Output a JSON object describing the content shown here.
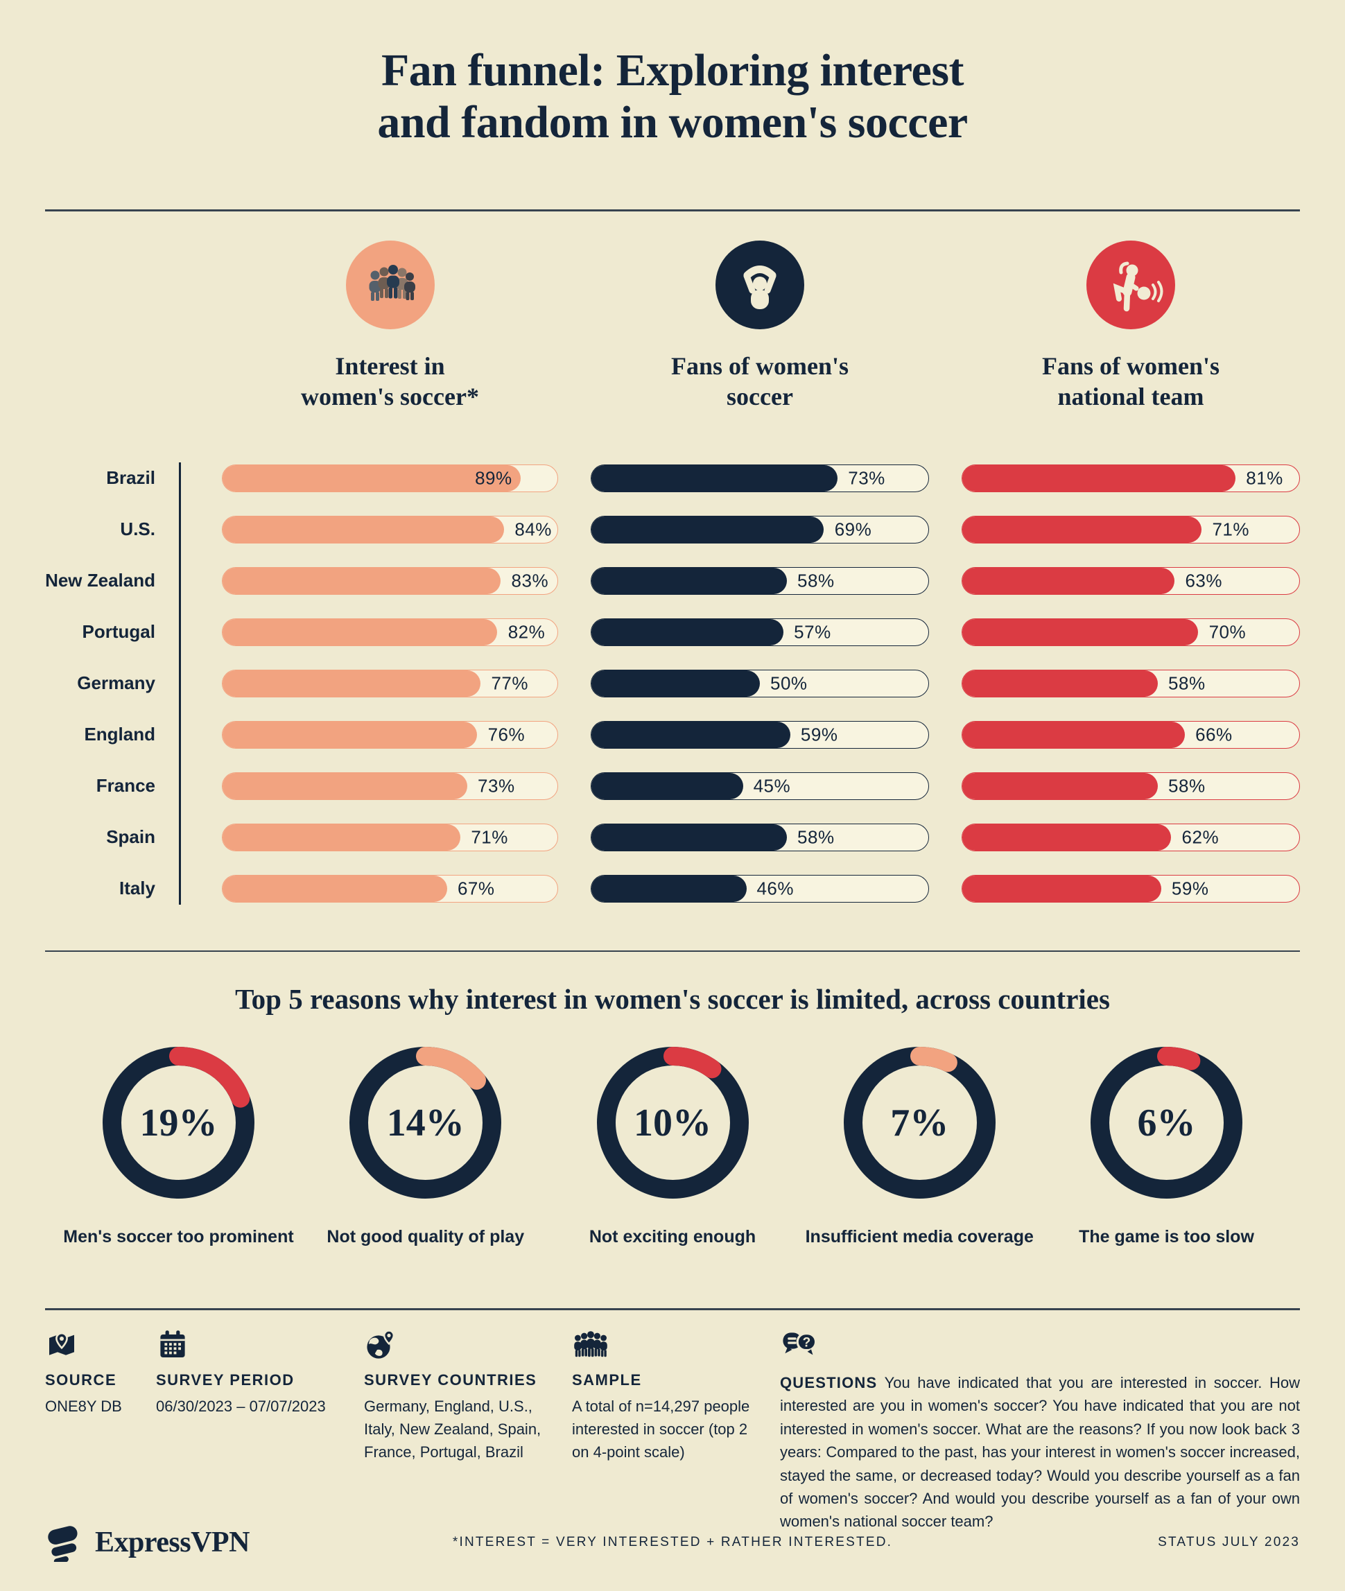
{
  "page": {
    "title": "Fan funnel: Exploring interest\nand fandom in women's soccer"
  },
  "colors": {
    "background": "#EFEAD1",
    "navy": "#14253A",
    "salmon": "#F2A380",
    "red": "#DB3B43",
    "track": "#F8F4E0"
  },
  "funnel": {
    "columns": [
      {
        "title": "Interest in\nwomen's soccer*",
        "icon": "crowd-icon",
        "color": "#F2A380"
      },
      {
        "title": "Fans of women's\nsoccer",
        "icon": "fan-icon",
        "color": "#14253A"
      },
      {
        "title": "Fans of women's\nnational team",
        "icon": "player-icon",
        "color": "#DB3B43"
      }
    ]
  },
  "chart_data": [
    {
      "type": "bar",
      "title": "Fan funnel: Exploring interest and fandom in women's soccer",
      "orientation": "horizontal",
      "unit": "%",
      "xlim": [
        0,
        100
      ],
      "categories": [
        "Brazil",
        "U.S.",
        "New Zealand",
        "Portugal",
        "Germany",
        "England",
        "France",
        "Spain",
        "Italy"
      ],
      "series": [
        {
          "name": "Interest in women's soccer*",
          "color": "#F2A380",
          "values": [
            89,
            84,
            83,
            82,
            77,
            76,
            73,
            71,
            67
          ]
        },
        {
          "name": "Fans of women's soccer",
          "color": "#14253A",
          "values": [
            73,
            69,
            58,
            57,
            50,
            59,
            45,
            58,
            46
          ]
        },
        {
          "name": "Fans of women's national team",
          "color": "#DB3B43",
          "values": [
            81,
            71,
            63,
            70,
            58,
            66,
            58,
            62,
            59
          ]
        }
      ]
    },
    {
      "type": "pie",
      "title": "Top 5 reasons why interest in women's soccer is limited, across countries",
      "unit": "%",
      "categories": [
        "Men's soccer too prominent",
        "Not good quality of play",
        "Not exciting enough",
        "Insufficient media coverage",
        "The game is too slow"
      ],
      "values": [
        19,
        14,
        10,
        7,
        6
      ],
      "arc_colors": [
        "#DB3B43",
        "#F2A380",
        "#DB3B43",
        "#F2A380",
        "#DB3B43"
      ],
      "ring_color": "#14253A"
    }
  ],
  "reasons": {
    "title": "Top 5 reasons why interest in women's soccer is limited, across countries"
  },
  "footer": {
    "source": {
      "label": "SOURCE",
      "value": "ONE8Y DB",
      "icon": "map-icon"
    },
    "period": {
      "label": "SURVEY PERIOD",
      "value": "06/30/2023 – 07/07/2023",
      "icon": "calendar-icon"
    },
    "countries": {
      "label": "SURVEY COUNTRIES",
      "value": "Germany, England, U.S., Italy, New Zealand, Spain, France, Portugal, Brazil",
      "icon": "globe-icon"
    },
    "sample": {
      "label": "SAMPLE",
      "value": "A total of n=14,297 people interested in soccer (top 2 on 4-point scale)",
      "icon": "people-icon"
    },
    "questions": {
      "label": "QUESTIONS",
      "value": "You have indicated that you are interested in soccer. How interested are you in women's soccer? You have indicated that you are not interested in women's soccer. What are the reasons? If you now look back 3 years: Compared to the past, has your interest in women's soccer increased, stayed the same, or decreased today? Would you describe yourself as a fan of women's soccer? And would you describe yourself as a fan of your own women's national soccer team?",
      "icon": "chat-icon"
    }
  },
  "bottom": {
    "brand": "ExpressVPN",
    "footnote": "*INTEREST = VERY INTERESTED + RATHER INTERESTED.",
    "status": "STATUS JULY 2023"
  }
}
